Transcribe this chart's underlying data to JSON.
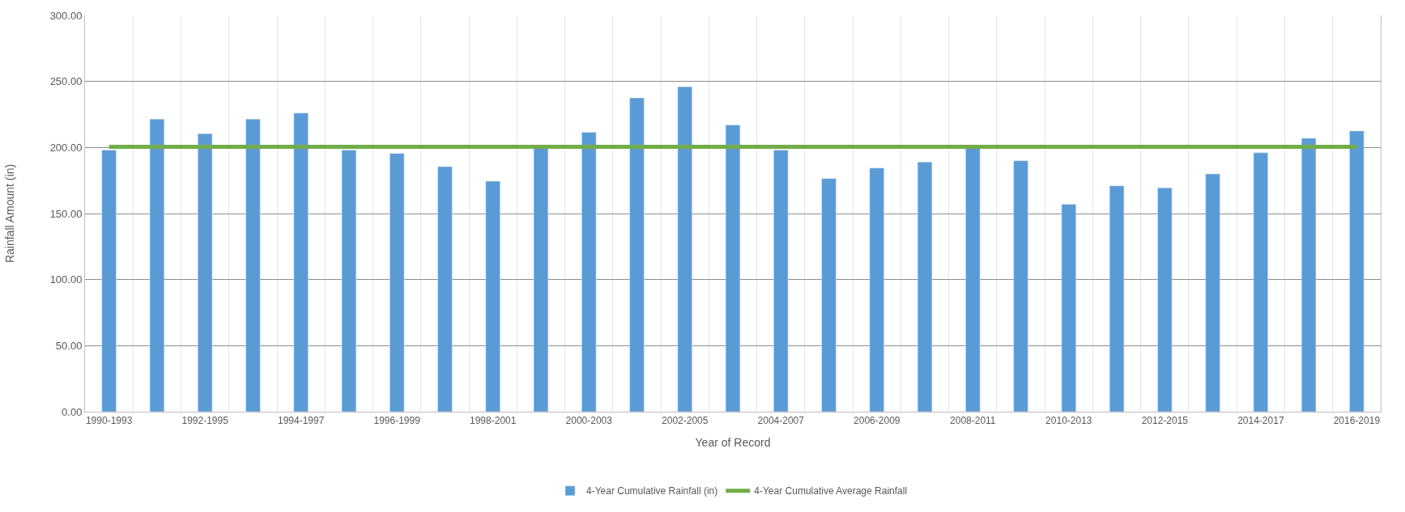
{
  "chart_data": {
    "type": "bar",
    "xlabel": "Year of Record",
    "ylabel": "Rainfall Amount (in)",
    "categories": [
      "1990-1993",
      null,
      "1992-1995",
      null,
      "1994-1997",
      null,
      "1996-1999",
      null,
      "1998-2001",
      null,
      "2000-2003",
      null,
      "2002-2005",
      null,
      "2004-2007",
      null,
      "2006-2009",
      null,
      "2008-2011",
      null,
      "2010-2013",
      null,
      "2012-2015",
      null,
      "2014-2017",
      null,
      "2016-2019"
    ],
    "series": [
      {
        "name": "4-Year Cumulative Rainfall (in)",
        "color": "#5b9bd5",
        "values": [
          198,
          221.5,
          210.5,
          221.5,
          226,
          198,
          195.5,
          185.5,
          174.5,
          200,
          211.5,
          237.5,
          246,
          217,
          198,
          176.5,
          184.5,
          189,
          200,
          190,
          157,
          171,
          169.5,
          180,
          196,
          207,
          212.5
        ]
      },
      {
        "name": "4-Year Cumulative Average Rainfall",
        "type": "line",
        "color": "#70ad47",
        "marker": "none",
        "values": [
          200.5,
          200.5,
          200.5,
          200.5,
          200.5,
          200.5,
          200.5,
          200.5,
          200.5,
          200.5,
          200.5,
          200.5,
          200.5,
          200.5,
          200.5,
          200.5,
          200.5,
          200.5,
          200.5,
          200.5,
          200.5,
          200.5,
          200.5,
          200.5,
          200.5,
          200.5,
          200.5
        ]
      }
    ],
    "ylim": [
      0,
      300
    ],
    "yticks": [
      {
        "value": 0,
        "label": "0.00"
      },
      {
        "value": 50,
        "label": "50.00"
      },
      {
        "value": 100,
        "label": "100.00"
      },
      {
        "value": 150,
        "label": "150.00"
      },
      {
        "value": 200,
        "label": "200.00"
      },
      {
        "value": 250,
        "label": "250.00"
      },
      {
        "value": 300,
        "label": "300.00"
      }
    ],
    "grid": true,
    "legend": "bottom"
  }
}
